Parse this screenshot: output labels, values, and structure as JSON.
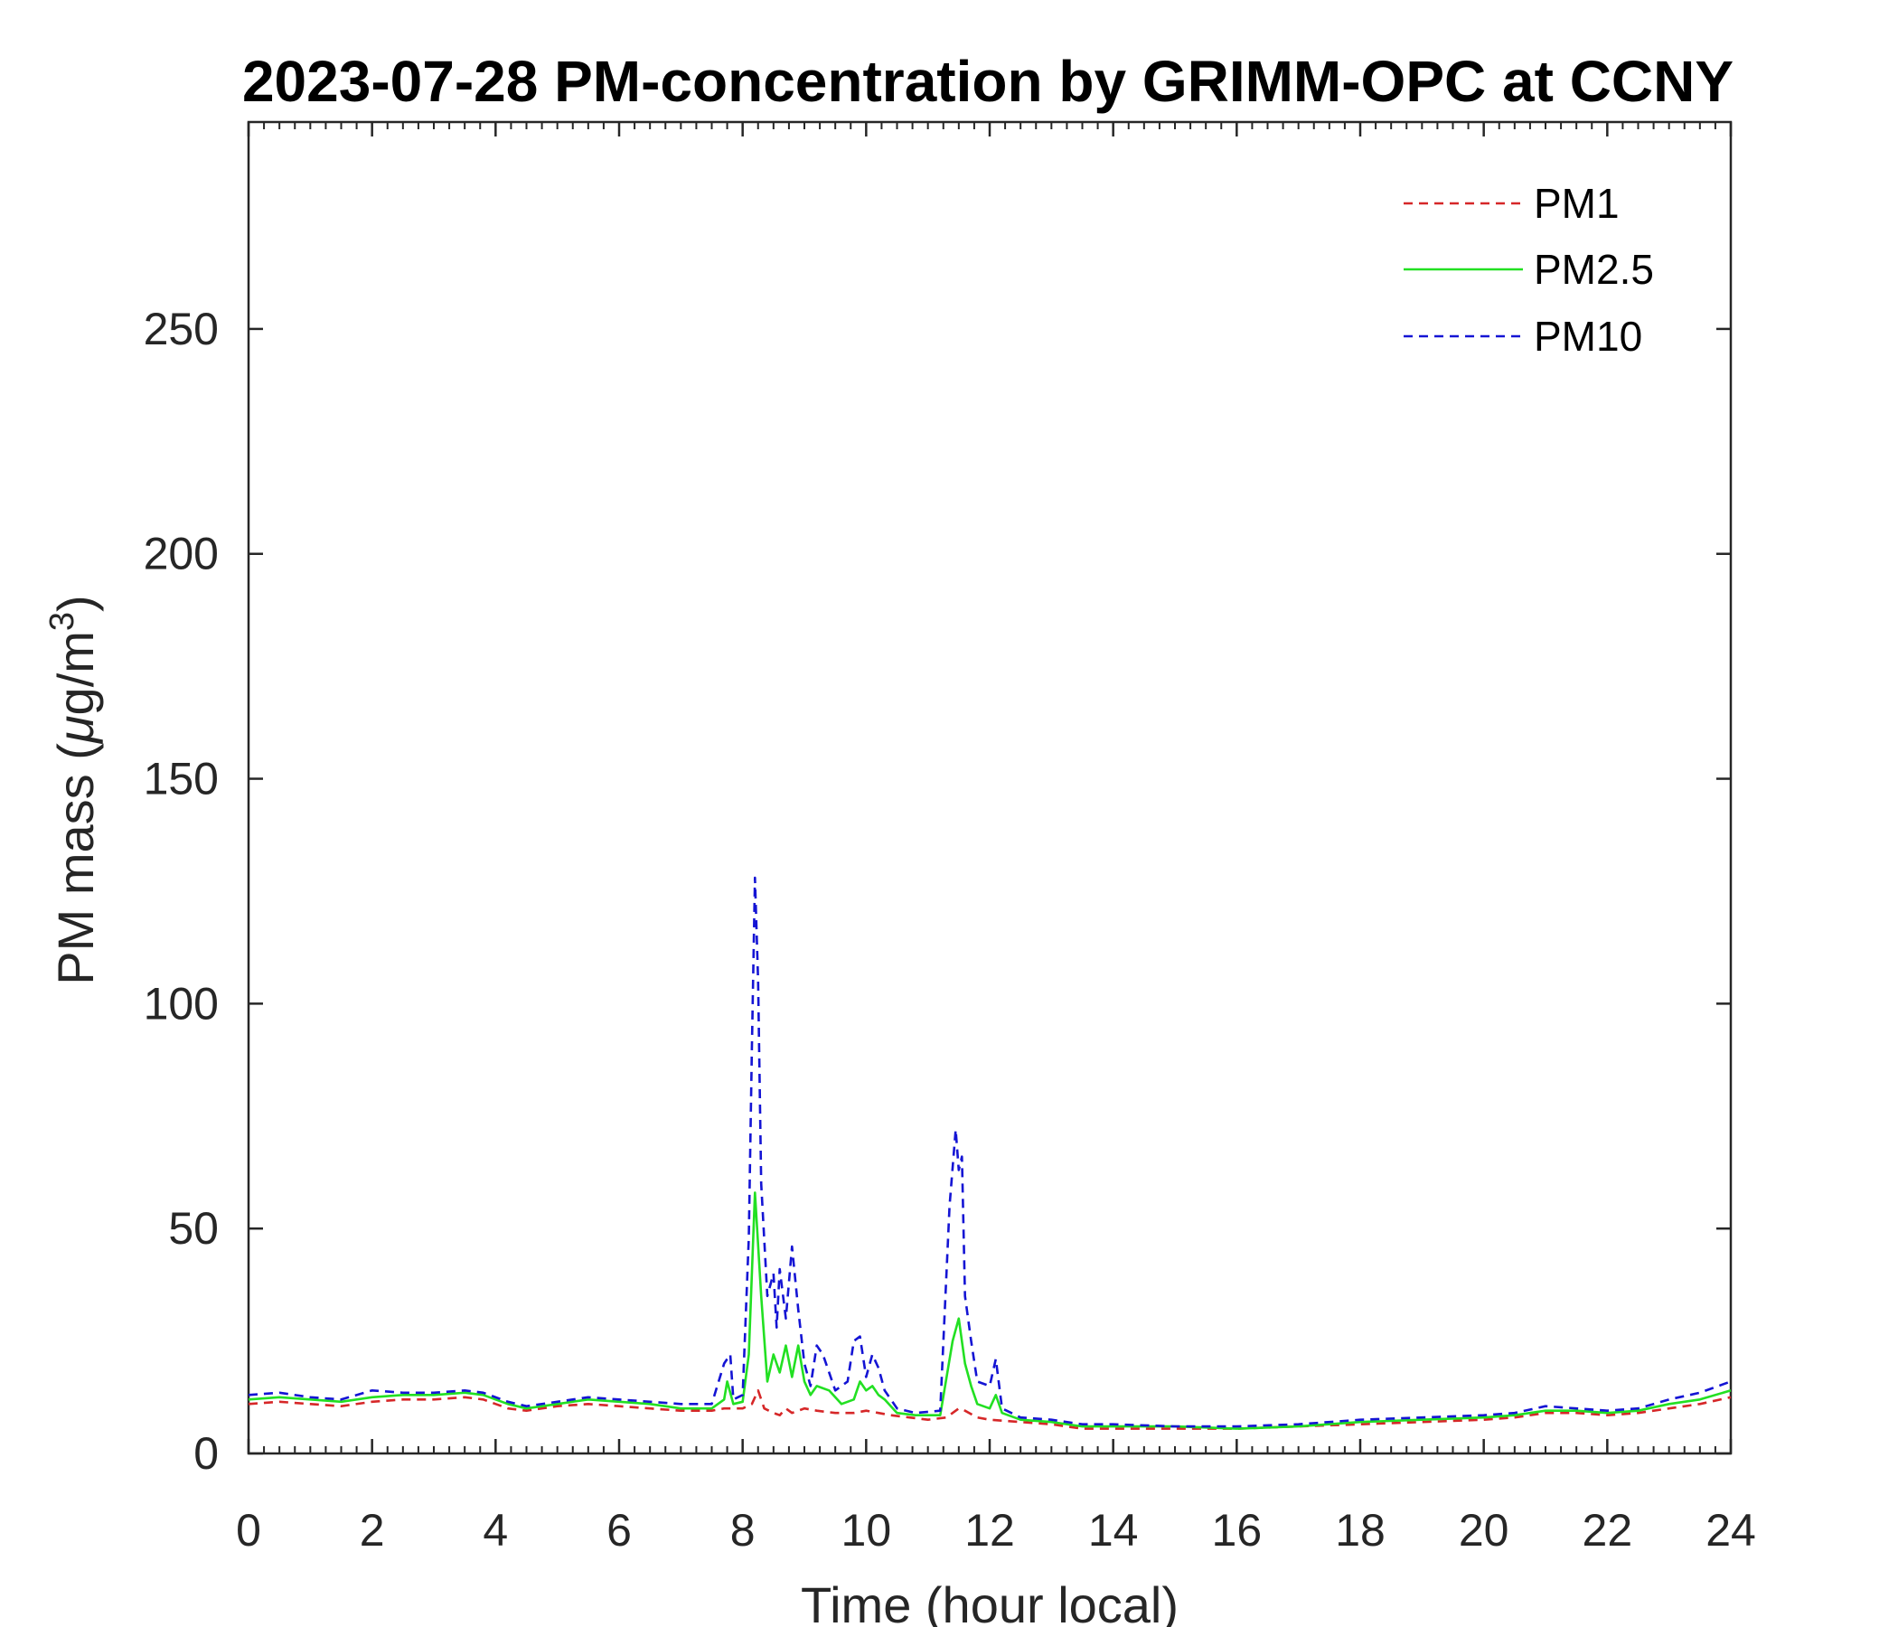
{
  "chart_data": {
    "type": "line",
    "title": "2023-07-28 PM-concentration by GRIMM-OPC at CCNY",
    "xlabel": "Time (hour local)",
    "ylabel_main": "PM mass (",
    "ylabel_mu": "μ",
    "ylabel_unit": "g/m",
    "ylabel_sup": "3",
    "ylabel_close": ")",
    "xlim": [
      0,
      24
    ],
    "ylim": [
      0,
      296
    ],
    "xticks": [
      0,
      2,
      4,
      6,
      8,
      10,
      12,
      14,
      16,
      18,
      20,
      22,
      24
    ],
    "xtick_labels": [
      "0",
      "2",
      "4",
      "6",
      "8",
      "10",
      "12",
      "14",
      "16",
      "18",
      "20",
      "22",
      "24"
    ],
    "yticks": [
      0,
      50,
      100,
      150,
      200,
      250
    ],
    "ytick_labels": [
      "0",
      "50",
      "100",
      "150",
      "200",
      "250"
    ],
    "grid": false,
    "legend_position": "top-right",
    "series": [
      {
        "name": "PM1",
        "color": "#d62728",
        "dash": "dashed",
        "points": [
          [
            0,
            11
          ],
          [
            0.5,
            11.5
          ],
          [
            1,
            11
          ],
          [
            1.5,
            10.5
          ],
          [
            2,
            11.5
          ],
          [
            2.5,
            12
          ],
          [
            3,
            12
          ],
          [
            3.5,
            12.5
          ],
          [
            3.8,
            12
          ],
          [
            4.2,
            10
          ],
          [
            4.5,
            9.5
          ],
          [
            5,
            10.5
          ],
          [
            5.5,
            11
          ],
          [
            6,
            10.5
          ],
          [
            6.5,
            10
          ],
          [
            7,
            9.5
          ],
          [
            7.5,
            9.5
          ],
          [
            7.7,
            10
          ],
          [
            7.8,
            10
          ],
          [
            8,
            10
          ],
          [
            8.15,
            11
          ],
          [
            8.25,
            14
          ],
          [
            8.35,
            10
          ],
          [
            8.5,
            9
          ],
          [
            8.6,
            8.5
          ],
          [
            8.7,
            10
          ],
          [
            8.8,
            9
          ],
          [
            9,
            10
          ],
          [
            9.2,
            9.5
          ],
          [
            9.5,
            9
          ],
          [
            9.8,
            9
          ],
          [
            10,
            9.5
          ],
          [
            10.2,
            9
          ],
          [
            10.4,
            8.5
          ],
          [
            10.7,
            8
          ],
          [
            11,
            7.5
          ],
          [
            11.3,
            8
          ],
          [
            11.5,
            10
          ],
          [
            11.6,
            9.5
          ],
          [
            11.8,
            8
          ],
          [
            12,
            7.5
          ],
          [
            12.5,
            7
          ],
          [
            13,
            6.5
          ],
          [
            13.5,
            5.5
          ],
          [
            14,
            5.5
          ],
          [
            15,
            5.5
          ],
          [
            16,
            5.5
          ],
          [
            17,
            6
          ],
          [
            18,
            6.5
          ],
          [
            19,
            7
          ],
          [
            20,
            7.5
          ],
          [
            20.5,
            8
          ],
          [
            21,
            9
          ],
          [
            21.5,
            9
          ],
          [
            22,
            8.5
          ],
          [
            22.5,
            9
          ],
          [
            23,
            10
          ],
          [
            23.5,
            11
          ],
          [
            24,
            12.5
          ]
        ]
      },
      {
        "name": "PM2.5",
        "color": "#22e022",
        "dash": "solid",
        "points": [
          [
            0,
            12
          ],
          [
            0.5,
            12.5
          ],
          [
            1,
            12
          ],
          [
            1.5,
            11.5
          ],
          [
            2,
            12.5
          ],
          [
            2.5,
            13
          ],
          [
            3,
            13
          ],
          [
            3.5,
            13.5
          ],
          [
            3.8,
            13
          ],
          [
            4.2,
            11
          ],
          [
            4.5,
            10
          ],
          [
            5,
            11
          ],
          [
            5.5,
            12
          ],
          [
            6,
            11.5
          ],
          [
            6.5,
            11
          ],
          [
            7,
            10
          ],
          [
            7.5,
            10
          ],
          [
            7.7,
            12
          ],
          [
            7.75,
            16
          ],
          [
            7.85,
            11
          ],
          [
            8,
            11.5
          ],
          [
            8.1,
            22
          ],
          [
            8.2,
            58
          ],
          [
            8.3,
            35
          ],
          [
            8.4,
            16
          ],
          [
            8.5,
            22
          ],
          [
            8.6,
            18
          ],
          [
            8.7,
            24
          ],
          [
            8.8,
            17
          ],
          [
            8.9,
            24
          ],
          [
            9,
            16
          ],
          [
            9.1,
            13
          ],
          [
            9.2,
            15
          ],
          [
            9.4,
            14
          ],
          [
            9.6,
            11
          ],
          [
            9.8,
            12
          ],
          [
            9.9,
            16
          ],
          [
            10,
            14
          ],
          [
            10.1,
            15
          ],
          [
            10.2,
            13
          ],
          [
            10.3,
            12
          ],
          [
            10.5,
            9
          ],
          [
            10.8,
            8.5
          ],
          [
            11.2,
            8.5
          ],
          [
            11.4,
            25
          ],
          [
            11.5,
            30
          ],
          [
            11.6,
            20
          ],
          [
            11.7,
            15
          ],
          [
            11.8,
            11
          ],
          [
            12,
            10
          ],
          [
            12.1,
            13
          ],
          [
            12.2,
            9
          ],
          [
            12.5,
            7.5
          ],
          [
            13,
            7
          ],
          [
            13.5,
            6
          ],
          [
            14,
            6
          ],
          [
            15,
            6
          ],
          [
            16,
            5.5
          ],
          [
            17,
            6
          ],
          [
            18,
            7
          ],
          [
            19,
            7.5
          ],
          [
            20,
            8
          ],
          [
            20.5,
            8.5
          ],
          [
            21,
            9.5
          ],
          [
            21.5,
            9.5
          ],
          [
            22,
            9
          ],
          [
            22.5,
            9.5
          ],
          [
            23,
            11
          ],
          [
            23.5,
            12
          ],
          [
            24,
            14
          ]
        ]
      },
      {
        "name": "PM10",
        "color": "#1414d4",
        "dash": "dashed",
        "points": [
          [
            0,
            13
          ],
          [
            0.5,
            13.5
          ],
          [
            1,
            12.5
          ],
          [
            1.5,
            12
          ],
          [
            2,
            14
          ],
          [
            2.5,
            13.5
          ],
          [
            3,
            13.5
          ],
          [
            3.5,
            14
          ],
          [
            3.8,
            13.5
          ],
          [
            4.2,
            11.5
          ],
          [
            4.5,
            10.5
          ],
          [
            5,
            11.5
          ],
          [
            5.5,
            12.5
          ],
          [
            6,
            12
          ],
          [
            6.5,
            11.5
          ],
          [
            7,
            11
          ],
          [
            7.5,
            11
          ],
          [
            7.7,
            20
          ],
          [
            7.8,
            22
          ],
          [
            7.85,
            12
          ],
          [
            8,
            13
          ],
          [
            8.1,
            48
          ],
          [
            8.15,
            90
          ],
          [
            8.2,
            128
          ],
          [
            8.25,
            105
          ],
          [
            8.3,
            60
          ],
          [
            8.4,
            35
          ],
          [
            8.5,
            40
          ],
          [
            8.55,
            28
          ],
          [
            8.6,
            41
          ],
          [
            8.7,
            30
          ],
          [
            8.8,
            46
          ],
          [
            8.9,
            32
          ],
          [
            9,
            20
          ],
          [
            9.1,
            15
          ],
          [
            9.2,
            24
          ],
          [
            9.3,
            22
          ],
          [
            9.5,
            14
          ],
          [
            9.7,
            16
          ],
          [
            9.8,
            25
          ],
          [
            9.9,
            26
          ],
          [
            10,
            17
          ],
          [
            10.1,
            22
          ],
          [
            10.2,
            19
          ],
          [
            10.3,
            14
          ],
          [
            10.5,
            10
          ],
          [
            10.8,
            9
          ],
          [
            11.2,
            9.5
          ],
          [
            11.35,
            55
          ],
          [
            11.45,
            72
          ],
          [
            11.5,
            63
          ],
          [
            11.55,
            66
          ],
          [
            11.6,
            35
          ],
          [
            11.7,
            25
          ],
          [
            11.8,
            16
          ],
          [
            12,
            15
          ],
          [
            12.1,
            21
          ],
          [
            12.2,
            10
          ],
          [
            12.5,
            8
          ],
          [
            13,
            7.5
          ],
          [
            13.5,
            6.5
          ],
          [
            14,
            6.5
          ],
          [
            15,
            6
          ],
          [
            16,
            6
          ],
          [
            17,
            6.5
          ],
          [
            18,
            7.5
          ],
          [
            19,
            8
          ],
          [
            20,
            8.5
          ],
          [
            20.5,
            9
          ],
          [
            21,
            10.5
          ],
          [
            21.5,
            10
          ],
          [
            22,
            9.5
          ],
          [
            22.5,
            10
          ],
          [
            23,
            12
          ],
          [
            23.5,
            13.5
          ],
          [
            24,
            16
          ]
        ]
      }
    ]
  }
}
